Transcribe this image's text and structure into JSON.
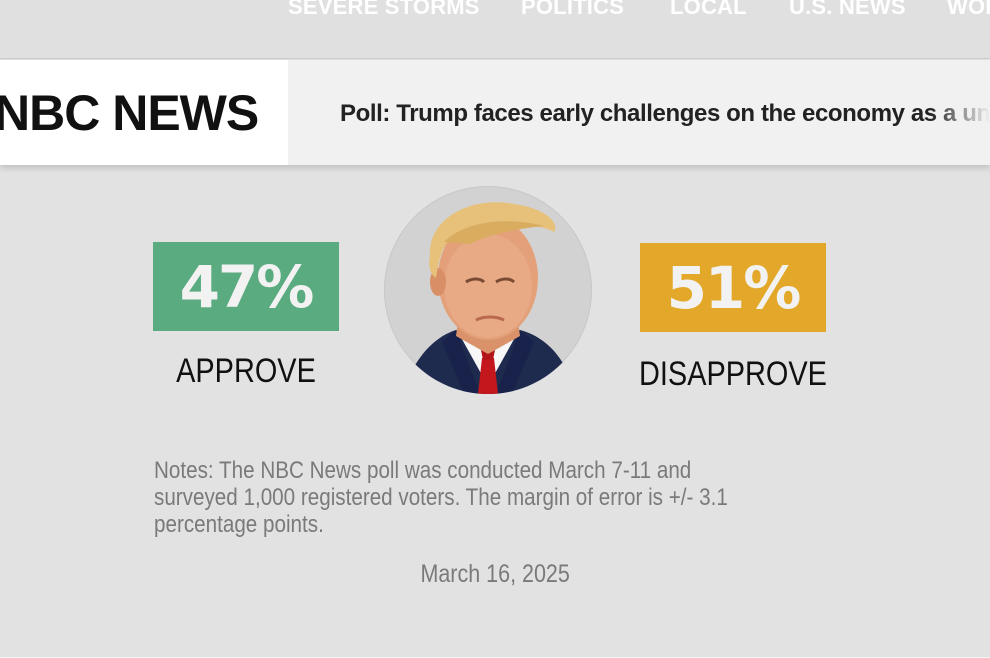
{
  "nav": {
    "items": [
      {
        "label": "SEVERE STORMS"
      },
      {
        "label": "POLITICS"
      },
      {
        "label": "LOCAL"
      },
      {
        "label": "U.S. NEWS"
      },
      {
        "label": "WOR"
      }
    ]
  },
  "header": {
    "logo_text": "NBC NEWS",
    "headline": "Poll: Trump faces early challenges on the economy as a un"
  },
  "poll": {
    "approve": {
      "value": "47%",
      "label": "APPROVE",
      "color": "#5bab80"
    },
    "disapprove": {
      "value": "51%",
      "label": "DISAPPROVE",
      "color": "#e3a829"
    },
    "notes": "Notes: The NBC News poll was conducted March 7-11 and surveyed 1,000 registered voters. The margin of error is +/- 3.1 percentage points.",
    "date": "March 16, 2025"
  },
  "colors": {
    "background": "#e2e2e2",
    "brand_bar": "#f1f1f1",
    "text_dark": "#111111",
    "text_muted": "#7a7a7a"
  }
}
